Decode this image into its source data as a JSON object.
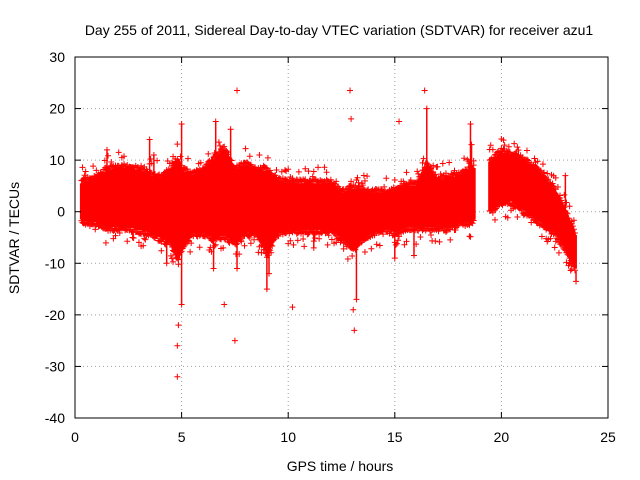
{
  "chart_data": {
    "type": "scatter",
    "title": "Day 255 of 2011, Sidereal Day-to-day VTEC variation (SDTVAR) for receiver azu1",
    "xlabel": "GPS time / hours",
    "ylabel": "SDTVAR / TECUs",
    "xlim": [
      0,
      25
    ],
    "ylim": [
      -40,
      30
    ],
    "xticks": [
      0,
      5,
      10,
      15,
      20,
      25
    ],
    "yticks": [
      -40,
      -30,
      -20,
      -10,
      0,
      10,
      20,
      30
    ],
    "grid": true,
    "marker": "+",
    "color": "#ff0000",
    "series": [
      {
        "name": "azu1",
        "bands": [
          {
            "x": 0.3,
            "lo": -1.5,
            "hi": 5.5
          },
          {
            "x": 0.6,
            "lo": -2.0,
            "hi": 6.0
          },
          {
            "x": 1.0,
            "lo": -2.0,
            "hi": 6.5
          },
          {
            "x": 1.5,
            "lo": -3.0,
            "hi": 8.0
          },
          {
            "x": 2.0,
            "lo": -3.0,
            "hi": 8.5
          },
          {
            "x": 2.5,
            "lo": -3.0,
            "hi": 8.5
          },
          {
            "x": 3.0,
            "lo": -3.5,
            "hi": 8.0
          },
          {
            "x": 3.5,
            "lo": -4.0,
            "hi": 7.0
          },
          {
            "x": 4.0,
            "lo": -5.0,
            "hi": 6.5
          },
          {
            "x": 4.5,
            "lo": -6.0,
            "hi": 8.0
          },
          {
            "x": 4.8,
            "lo": -9.0,
            "hi": 10.0
          },
          {
            "x": 5.0,
            "lo": -7.0,
            "hi": 8.0
          },
          {
            "x": 5.5,
            "lo": -4.0,
            "hi": 7.0
          },
          {
            "x": 6.0,
            "lo": -4.0,
            "hi": 8.0
          },
          {
            "x": 6.5,
            "lo": -5.0,
            "hi": 10.0
          },
          {
            "x": 7.0,
            "lo": -4.5,
            "hi": 12.0
          },
          {
            "x": 7.5,
            "lo": -6.0,
            "hi": 8.0
          },
          {
            "x": 8.0,
            "lo": -4.0,
            "hi": 9.0
          },
          {
            "x": 8.5,
            "lo": -4.0,
            "hi": 8.0
          },
          {
            "x": 9.0,
            "lo": -8.0,
            "hi": 8.0
          },
          {
            "x": 9.5,
            "lo": -4.0,
            "hi": 6.0
          },
          {
            "x": 10.0,
            "lo": -3.5,
            "hi": 5.5
          },
          {
            "x": 10.5,
            "lo": -3.5,
            "hi": 5.5
          },
          {
            "x": 11.0,
            "lo": -3.5,
            "hi": 5.5
          },
          {
            "x": 11.5,
            "lo": -3.5,
            "hi": 5.5
          },
          {
            "x": 12.0,
            "lo": -3.5,
            "hi": 5.5
          },
          {
            "x": 12.5,
            "lo": -5.0,
            "hi": 3.5
          },
          {
            "x": 13.0,
            "lo": -7.0,
            "hi": 4.5
          },
          {
            "x": 13.5,
            "lo": -5.0,
            "hi": 4.0
          },
          {
            "x": 14.0,
            "lo": -4.0,
            "hi": 3.5
          },
          {
            "x": 14.5,
            "lo": -3.0,
            "hi": 3.5
          },
          {
            "x": 15.0,
            "lo": -4.0,
            "hi": 4.0
          },
          {
            "x": 15.5,
            "lo": -3.0,
            "hi": 5.0
          },
          {
            "x": 16.0,
            "lo": -3.0,
            "hi": 5.0
          },
          {
            "x": 16.5,
            "lo": -3.0,
            "hi": 9.0
          },
          {
            "x": 17.0,
            "lo": -3.0,
            "hi": 6.0
          },
          {
            "x": 17.5,
            "lo": -3.0,
            "hi": 6.5
          },
          {
            "x": 18.0,
            "lo": -2.0,
            "hi": 7.0
          },
          {
            "x": 18.5,
            "lo": -2.0,
            "hi": 8.0
          },
          {
            "x": 19.6,
            "lo": 0.5,
            "hi": 10.0
          },
          {
            "x": 20.0,
            "lo": 2.0,
            "hi": 11.5
          },
          {
            "x": 20.5,
            "lo": 2.0,
            "hi": 11.0
          },
          {
            "x": 21.0,
            "lo": 0.5,
            "hi": 10.0
          },
          {
            "x": 21.5,
            "lo": -1.0,
            "hi": 8.5
          },
          {
            "x": 22.0,
            "lo": -2.5,
            "hi": 6.5
          },
          {
            "x": 22.5,
            "lo": -4.0,
            "hi": 4.0
          },
          {
            "x": 23.0,
            "lo": -7.0,
            "hi": 0.0
          },
          {
            "x": 23.5,
            "lo": -11.5,
            "hi": -5.0
          }
        ],
        "gaps": [
          [
            18.75,
            19.45
          ]
        ],
        "outliers": [
          {
            "x": 1.5,
            "y": 12
          },
          {
            "x": 3.5,
            "y": 14
          },
          {
            "x": 3.7,
            "y": 11
          },
          {
            "x": 4.3,
            "y": -10
          },
          {
            "x": 4.8,
            "y": -32
          },
          {
            "x": 4.8,
            "y": -26
          },
          {
            "x": 4.85,
            "y": -22
          },
          {
            "x": 5.0,
            "y": 17
          },
          {
            "x": 5.0,
            "y": -18
          },
          {
            "x": 6.6,
            "y": 17.5
          },
          {
            "x": 6.5,
            "y": -11
          },
          {
            "x": 7.0,
            "y": -18
          },
          {
            "x": 7.3,
            "y": 16
          },
          {
            "x": 7.6,
            "y": 23.5
          },
          {
            "x": 7.5,
            "y": -25
          },
          {
            "x": 7.6,
            "y": -11
          },
          {
            "x": 9.0,
            "y": -15
          },
          {
            "x": 9.1,
            "y": -12
          },
          {
            "x": 10.2,
            "y": -18.5
          },
          {
            "x": 11.2,
            "y": -7
          },
          {
            "x": 12.9,
            "y": 23.5
          },
          {
            "x": 12.95,
            "y": 18
          },
          {
            "x": 13.1,
            "y": -23
          },
          {
            "x": 13.05,
            "y": -19
          },
          {
            "x": 13.2,
            "y": -17
          },
          {
            "x": 15.2,
            "y": 17.5
          },
          {
            "x": 15.0,
            "y": -9
          },
          {
            "x": 15.9,
            "y": -8.5
          },
          {
            "x": 16.4,
            "y": 23.5
          },
          {
            "x": 16.5,
            "y": 20
          },
          {
            "x": 18.55,
            "y": 17
          },
          {
            "x": 18.6,
            "y": 13
          },
          {
            "x": 23.0,
            "y": 7
          },
          {
            "x": 23.2,
            "y": -10
          },
          {
            "x": 23.5,
            "y": -13.5
          }
        ]
      }
    ]
  }
}
